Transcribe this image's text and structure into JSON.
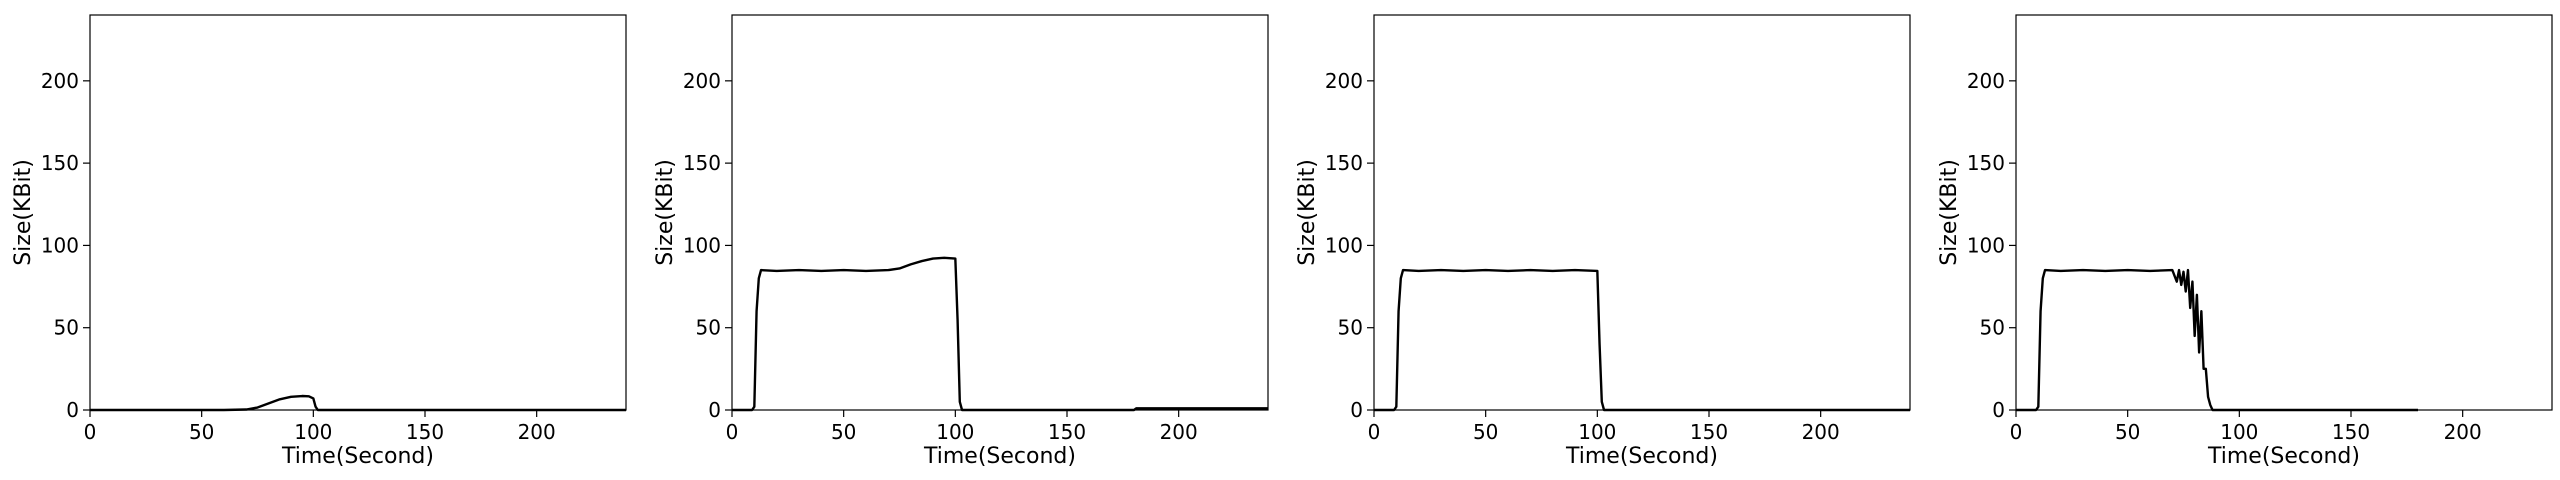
{
  "chart_data": [
    {
      "type": "line",
      "xlabel": "Time(Second)",
      "ylabel": "Size(KBit)",
      "xlim": [
        0,
        240
      ],
      "ylim": [
        0,
        240
      ],
      "xticks": [
        0,
        50,
        100,
        150,
        200
      ],
      "yticks": [
        0,
        50,
        100,
        150,
        200
      ],
      "grid": false,
      "series": [
        {
          "x": [
            0,
            20,
            40,
            60,
            70,
            75,
            80,
            85,
            90,
            95,
            98,
            100,
            101,
            102,
            120,
            150,
            180,
            200,
            220,
            240
          ],
          "y": [
            0,
            0,
            0,
            0,
            0.3,
            1.5,
            4,
            6.5,
            8,
            8.5,
            8.3,
            7,
            2,
            0,
            0,
            0,
            0,
            0,
            0,
            0
          ]
        }
      ]
    },
    {
      "type": "line",
      "xlabel": "Time(Second)",
      "ylabel": "Size(KBit)",
      "xlim": [
        0,
        240
      ],
      "ylim": [
        0,
        240
      ],
      "xticks": [
        0,
        50,
        100,
        150,
        200
      ],
      "yticks": [
        0,
        50,
        100,
        150,
        200
      ],
      "grid": false,
      "series": [
        {
          "x": [
            0,
            5,
            9,
            10,
            11,
            12,
            13,
            20,
            30,
            40,
            50,
            60,
            70,
            75,
            80,
            85,
            90,
            95,
            100,
            101,
            102,
            103,
            120,
            150,
            180,
            181,
            200,
            240
          ],
          "y": [
            0,
            0,
            0,
            2,
            60,
            80,
            85,
            84.5,
            85,
            84.5,
            85,
            84.5,
            85,
            86,
            88.5,
            90.5,
            92,
            92.5,
            92,
            55,
            5,
            0,
            0,
            0,
            0,
            1,
            1,
            1
          ]
        }
      ]
    },
    {
      "type": "line",
      "xlabel": "Time(Second)",
      "ylabel": "Size(KBit)",
      "xlim": [
        0,
        240
      ],
      "ylim": [
        0,
        240
      ],
      "xticks": [
        0,
        50,
        100,
        150,
        200
      ],
      "yticks": [
        0,
        50,
        100,
        150,
        200
      ],
      "grid": false,
      "series": [
        {
          "x": [
            0,
            5,
            9,
            10,
            11,
            12,
            13,
            20,
            30,
            40,
            50,
            60,
            70,
            80,
            90,
            100,
            101,
            102,
            103,
            120,
            150,
            180,
            200,
            220,
            240
          ],
          "y": [
            0,
            0,
            0,
            2,
            60,
            80,
            85,
            84.5,
            85,
            84.5,
            85,
            84.5,
            85,
            84.5,
            85,
            84.5,
            40,
            5,
            0,
            0,
            0,
            0,
            0,
            0,
            0
          ]
        }
      ]
    },
    {
      "type": "line",
      "xlabel": "Time(Second)",
      "ylabel": "Size(KBit)",
      "xlim": [
        0,
        240
      ],
      "ylim": [
        0,
        240
      ],
      "xticks": [
        0,
        50,
        100,
        150,
        200
      ],
      "yticks": [
        0,
        50,
        100,
        150,
        200
      ],
      "grid": false,
      "series": [
        {
          "x": [
            0,
            5,
            9,
            10,
            11,
            12,
            13,
            20,
            30,
            40,
            50,
            60,
            70,
            72,
            73,
            74,
            75,
            76,
            77,
            78,
            79,
            80,
            81,
            82,
            83,
            84,
            85,
            86,
            87,
            88,
            90,
            120,
            150,
            180
          ],
          "y": [
            0,
            0,
            0,
            2,
            60,
            80,
            85,
            84.5,
            85,
            84.5,
            85,
            84.5,
            85,
            78,
            85,
            76,
            84,
            72,
            85,
            62,
            78,
            45,
            70,
            35,
            60,
            25,
            25,
            8,
            3,
            0,
            0,
            0,
            0,
            0
          ]
        }
      ]
    }
  ]
}
